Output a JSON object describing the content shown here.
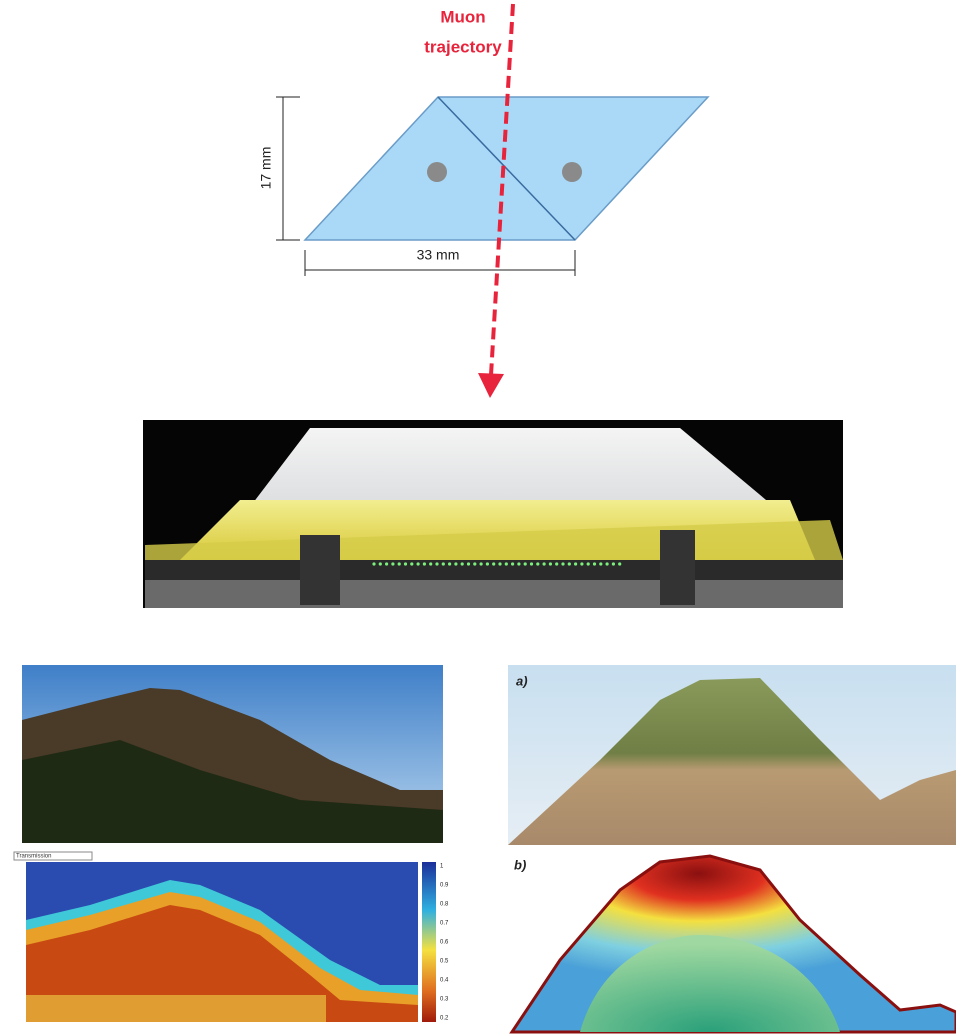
{
  "diagram": {
    "trajectory_label": [
      "Muon",
      "trajectory"
    ],
    "height_label": "17 mm",
    "width_label": "33 mm"
  },
  "panels": {
    "left": {
      "legend_title": "Transmission",
      "colorbar_ticks": [
        "1",
        "0.9",
        "0.8",
        "0.7",
        "0.6",
        "0.5",
        "0.4",
        "0.3",
        "0.2"
      ]
    },
    "right": {
      "a_label": "a)",
      "b_label": "b)"
    }
  }
}
